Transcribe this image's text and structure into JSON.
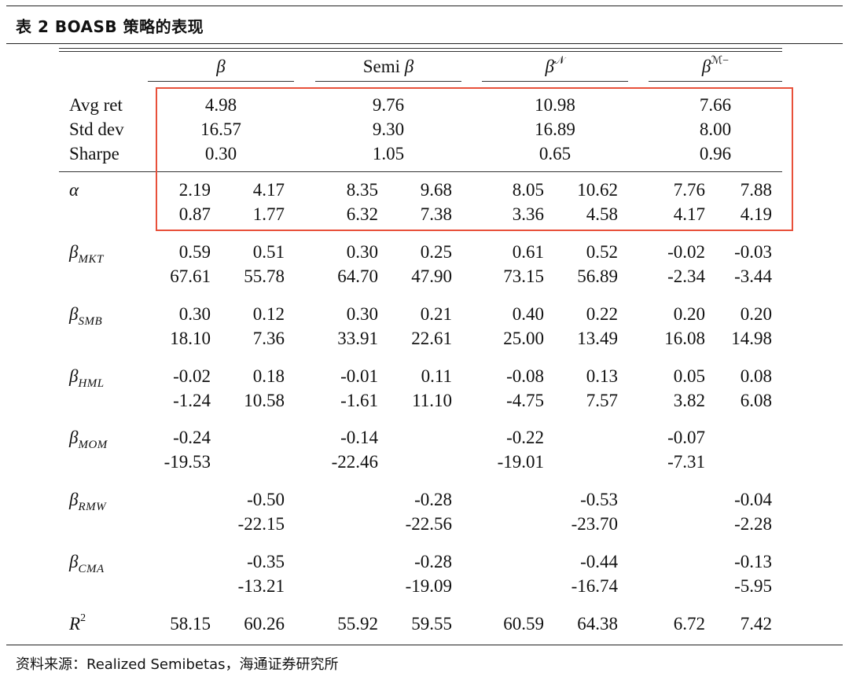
{
  "caption": "表 2 BOASB 策略的表现",
  "headers": [
    "β",
    "Semi β",
    "βN",
    "βM−"
  ],
  "header_parts": {
    "h0": "β",
    "h1_text": "Semi ",
    "h1_greek": "β",
    "h2_greek": "β",
    "h2_sup": "𝒩",
    "h3_greek": "β",
    "h3_sup": "ℳ−"
  },
  "summary_labels": [
    "Avg ret",
    "Std dev",
    "Sharpe"
  ],
  "summary": [
    [
      "4.98",
      "9.76",
      "10.98",
      "7.66"
    ],
    [
      "16.57",
      "9.30",
      "16.89",
      "8.00"
    ],
    [
      "0.30",
      "1.05",
      "0.65",
      "0.96"
    ]
  ],
  "rows": [
    {
      "label": "α",
      "sub": "",
      "vals": [
        [
          "2.19",
          "4.17",
          "8.35",
          "9.68",
          "8.05",
          "10.62",
          "7.76",
          "7.88"
        ],
        [
          "0.87",
          "1.77",
          "6.32",
          "7.38",
          "3.36",
          "4.58",
          "4.17",
          "4.19"
        ]
      ]
    },
    {
      "label": "β",
      "sub": "MKT",
      "vals": [
        [
          "0.59",
          "0.51",
          "0.30",
          "0.25",
          "0.61",
          "0.52",
          "-0.02",
          "-0.03"
        ],
        [
          "67.61",
          "55.78",
          "64.70",
          "47.90",
          "73.15",
          "56.89",
          "-2.34",
          "-3.44"
        ]
      ]
    },
    {
      "label": "β",
      "sub": "SMB",
      "vals": [
        [
          "0.30",
          "0.12",
          "0.30",
          "0.21",
          "0.40",
          "0.22",
          "0.20",
          "0.20"
        ],
        [
          "18.10",
          "7.36",
          "33.91",
          "22.61",
          "25.00",
          "13.49",
          "16.08",
          "14.98"
        ]
      ]
    },
    {
      "label": "β",
      "sub": "HML",
      "vals": [
        [
          "-0.02",
          "0.18",
          "-0.01",
          "0.11",
          "-0.08",
          "0.13",
          "0.05",
          "0.08"
        ],
        [
          "-1.24",
          "10.58",
          "-1.61",
          "11.10",
          "-4.75",
          "7.57",
          "3.82",
          "6.08"
        ]
      ]
    },
    {
      "label": "β",
      "sub": "MOM",
      "vals": [
        [
          "-0.24",
          "",
          "-0.14",
          "",
          "-0.22",
          "",
          "-0.07",
          ""
        ],
        [
          "-19.53",
          "",
          "-22.46",
          "",
          "-19.01",
          "",
          "-7.31",
          ""
        ]
      ]
    },
    {
      "label": "β",
      "sub": "RMW",
      "vals": [
        [
          "",
          "-0.50",
          "",
          "-0.28",
          "",
          "-0.53",
          "",
          "-0.04"
        ],
        [
          "",
          "-22.15",
          "",
          "-22.56",
          "",
          "-23.70",
          "",
          "-2.28"
        ]
      ]
    },
    {
      "label": "β",
      "sub": "CMA",
      "vals": [
        [
          "",
          "-0.35",
          "",
          "-0.28",
          "",
          "-0.44",
          "",
          "-0.13"
        ],
        [
          "",
          "-13.21",
          "",
          "-19.09",
          "",
          "-16.74",
          "",
          "-5.95"
        ]
      ]
    }
  ],
  "r2": {
    "label": "R",
    "sup": "2",
    "vals": [
      "58.15",
      "60.26",
      "55.92",
      "59.55",
      "60.59",
      "64.38",
      "6.72",
      "7.42"
    ]
  },
  "source": "资料来源：Realized Semibetas，海通证券研究所",
  "colors": {
    "highlight": "#e8503a",
    "rule": "#222222"
  }
}
